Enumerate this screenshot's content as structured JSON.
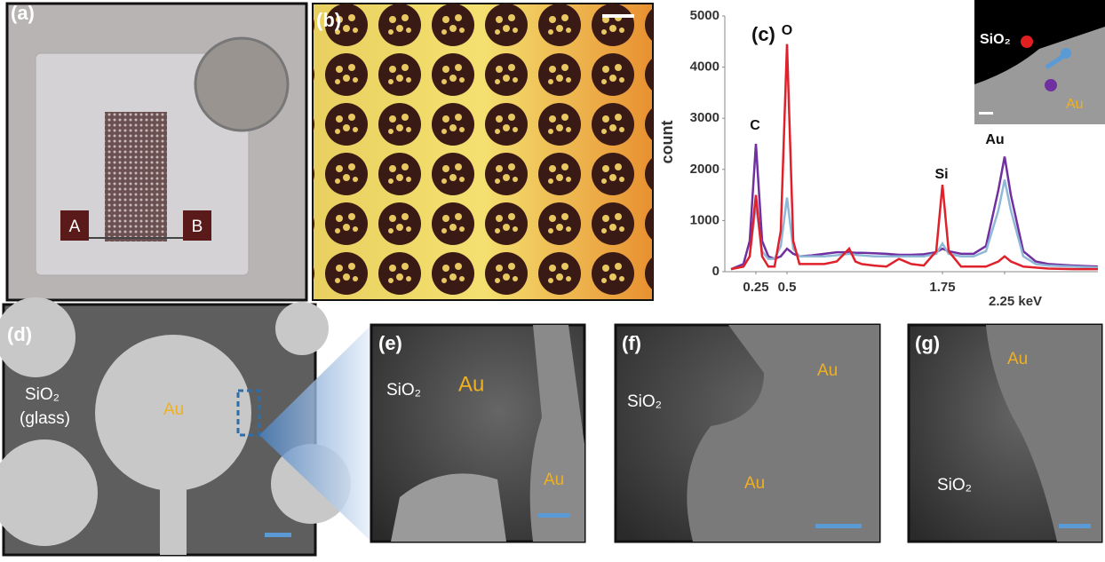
{
  "panel_a": {
    "label": "(a)",
    "pad_a": "A",
    "pad_b": "B"
  },
  "panel_b": {
    "label": "(b)"
  },
  "chart_data": {
    "type": "line",
    "panel_label": "(c)",
    "ylabel": "count",
    "x": [
      0.05,
      0.15,
      0.2,
      0.25,
      0.3,
      0.35,
      0.4,
      0.45,
      0.5,
      0.55,
      0.6,
      0.7,
      0.8,
      0.9,
      1.0,
      1.05,
      1.1,
      1.2,
      1.3,
      1.4,
      1.5,
      1.6,
      1.7,
      1.75,
      1.8,
      1.9,
      2.0,
      2.1,
      2.2,
      2.25,
      2.3,
      2.4,
      2.5,
      2.6,
      2.8,
      3.0
    ],
    "series": [
      {
        "color": "#7030a0",
        "values": [
          50,
          150,
          600,
          2500,
          600,
          300,
          250,
          300,
          450,
          350,
          300,
          320,
          350,
          380,
          380,
          370,
          370,
          360,
          350,
          330,
          330,
          340,
          380,
          450,
          400,
          350,
          350,
          500,
          1600,
          2250,
          1500,
          400,
          200,
          150,
          120,
          100
        ]
      },
      {
        "color": "#8fb8d8",
        "values": [
          50,
          100,
          300,
          1300,
          400,
          250,
          250,
          500,
          1450,
          450,
          300,
          300,
          300,
          320,
          350,
          330,
          320,
          300,
          300,
          300,
          300,
          300,
          350,
          550,
          350,
          300,
          300,
          400,
          1200,
          1800,
          1200,
          300,
          150,
          120,
          100,
          80
        ]
      },
      {
        "color": "#e0202a",
        "values": [
          50,
          100,
          300,
          1500,
          300,
          100,
          100,
          800,
          4450,
          600,
          150,
          150,
          150,
          200,
          450,
          200,
          150,
          120,
          100,
          250,
          150,
          120,
          400,
          1700,
          400,
          100,
          100,
          100,
          200,
          300,
          200,
          100,
          80,
          60,
          50,
          50
        ]
      }
    ],
    "xlim": [
      0,
      3
    ],
    "ylim": [
      0,
      5000
    ],
    "yticks": [
      0,
      1000,
      2000,
      3000,
      4000,
      5000
    ],
    "xticks": [
      0.25,
      0.5,
      1.75,
      {
        "value": 2.25,
        "label": "2.25 keV"
      }
    ],
    "annotations": [
      "C",
      "O",
      "Si",
      "Au"
    ],
    "inset_labels": [
      "SiO₂",
      "Au"
    ]
  },
  "panel_d": {
    "label": "(d)",
    "substrate": "SiO₂",
    "substrate_note": "(glass)",
    "metal": "Au"
  },
  "panel_e": {
    "label": "(e)",
    "substrate": "SiO₂",
    "metal_top": "Au",
    "metal_bottom": "Au"
  },
  "panel_f": {
    "label": "(f)",
    "substrate": "SiO₂",
    "metal_top": "Au",
    "metal_bottom": "Au"
  },
  "panel_g": {
    "label": "(g)",
    "metal": "Au",
    "substrate": "SiO₂"
  }
}
